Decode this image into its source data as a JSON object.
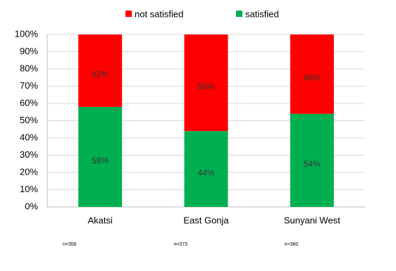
{
  "chart_data": {
    "type": "stacked_bar",
    "categories": [
      "Akatsi",
      "East Gonja",
      "Sunyani West"
    ],
    "series": [
      {
        "name": "satisfied",
        "color": "#00b050",
        "values": [
          58,
          44,
          54
        ],
        "value_labels": [
          "58%",
          "44%",
          "54%"
        ]
      },
      {
        "name": "not satisfied",
        "color": "#ff0000",
        "values": [
          42,
          56,
          46
        ],
        "value_labels": [
          "42%",
          "56%",
          "46%"
        ]
      }
    ],
    "ylim": [
      0,
      100
    ],
    "yticks": [
      {
        "value": 0,
        "label": "0%"
      },
      {
        "value": 10,
        "label": "10%"
      },
      {
        "value": 20,
        "label": "20%"
      },
      {
        "value": 30,
        "label": "30%"
      },
      {
        "value": 40,
        "label": "40%"
      },
      {
        "value": 50,
        "label": "50%"
      },
      {
        "value": 60,
        "label": "60%"
      },
      {
        "value": 70,
        "label": "70%"
      },
      {
        "value": 80,
        "label": "80%"
      },
      {
        "value": 90,
        "label": "90%"
      },
      {
        "value": 100,
        "label": "100%"
      }
    ],
    "grid": true,
    "legend": "top",
    "annotations": [
      "n=356",
      "n=373",
      "n=360"
    ]
  }
}
